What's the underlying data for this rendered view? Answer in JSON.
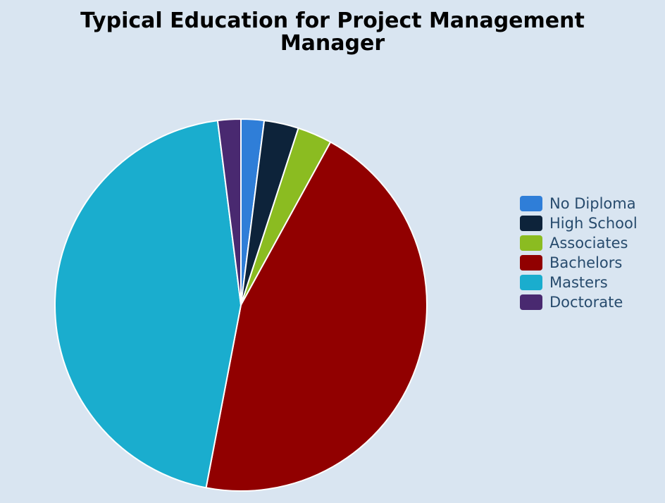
{
  "chart_data": {
    "type": "pie",
    "title": "Typical Education for Project Management Manager",
    "categories": [
      "No Diploma",
      "High School",
      "Associates",
      "Bachelors",
      "Masters",
      "Doctorate"
    ],
    "values": [
      2,
      3,
      3,
      45,
      45,
      2
    ],
    "colors": [
      "#2f7ed8",
      "#0d233a",
      "#8bbc21",
      "#910000",
      "#1aadce",
      "#492970"
    ],
    "legend": "right"
  }
}
